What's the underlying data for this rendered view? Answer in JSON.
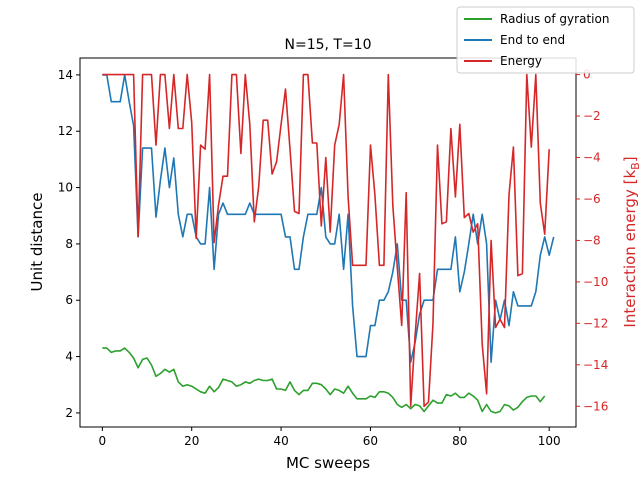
{
  "chart_data": {
    "type": "line",
    "title": "N=15, T=10",
    "xlabel": "MC sweeps",
    "ylabel_left": "Unit distance",
    "ylabel_right": "Interaction energy [$k_B$]",
    "xlim": [
      -5,
      106
    ],
    "ylim_left": [
      1.5,
      14.6
    ],
    "ylim_right": [
      -17.0,
      0.8
    ],
    "xticks": [
      0,
      20,
      40,
      60,
      80,
      100
    ],
    "yticks_left": [
      2,
      4,
      6,
      8,
      10,
      12,
      14
    ],
    "yticks_right": [
      0,
      -2,
      -4,
      -6,
      -8,
      -10,
      -12,
      -14,
      -16
    ],
    "grid": false,
    "legend_position": "top-right",
    "colors": {
      "radius": "#2ca02c",
      "end_to_end": "#1f77b4",
      "energy": "#d62728",
      "right_axis": "#d62728",
      "axes": "#000000"
    },
    "series": [
      {
        "name": "Radius of gyration",
        "axis": "left",
        "color": "#2ca02c",
        "values": [
          4.3,
          4.3,
          4.15,
          4.2,
          4.2,
          4.3,
          4.15,
          3.95,
          3.6,
          3.9,
          3.95,
          3.7,
          3.3,
          3.4,
          3.55,
          3.45,
          3.55,
          3.1,
          2.95,
          3.0,
          2.95,
          2.85,
          2.75,
          2.7,
          2.95,
          2.75,
          2.9,
          3.2,
          3.15,
          3.1,
          2.95,
          3.0,
          3.1,
          3.05,
          3.15,
          3.2,
          3.15,
          3.15,
          3.2,
          2.85,
          2.85,
          2.8,
          3.1,
          2.8,
          2.65,
          2.8,
          2.8,
          3.05,
          3.05,
          3.0,
          2.85,
          2.65,
          2.85,
          2.8,
          2.7,
          2.95,
          2.7,
          2.5,
          2.5,
          2.5,
          2.6,
          2.55,
          2.75,
          2.75,
          2.7,
          2.55,
          2.3,
          2.2,
          2.3,
          2.15,
          2.3,
          2.25,
          2.05,
          2.25,
          2.45,
          2.35,
          2.35,
          2.65,
          2.6,
          2.7,
          2.55,
          2.55,
          2.7,
          2.6,
          2.45,
          2.05,
          2.3,
          2.05,
          2.0,
          2.05,
          2.3,
          2.25,
          2.1,
          2.2,
          2.4,
          2.55,
          2.6,
          2.6,
          2.4,
          2.6
        ]
      },
      {
        "name": "End to end",
        "axis": "left",
        "color": "#1f77b4",
        "values": [
          14.0,
          14.0,
          13.05,
          13.05,
          13.05,
          14.0,
          13.05,
          12.2,
          8.25,
          11.4,
          11.4,
          11.4,
          8.95,
          10.25,
          11.4,
          10.0,
          11.05,
          9.05,
          8.25,
          9.05,
          9.05,
          8.25,
          8.0,
          8.0,
          10.0,
          7.1,
          9.05,
          9.45,
          9.05,
          9.05,
          9.05,
          9.05,
          9.05,
          9.45,
          9.05,
          9.05,
          9.05,
          9.05,
          9.05,
          9.05,
          9.05,
          8.25,
          8.25,
          7.1,
          7.1,
          8.25,
          9.05,
          9.05,
          9.05,
          10.0,
          8.25,
          8.0,
          8.0,
          9.05,
          7.1,
          9.05,
          5.8,
          4.0,
          4.0,
          4.0,
          5.1,
          5.1,
          6.0,
          6.0,
          6.3,
          7.0,
          8.0,
          6.0,
          6.0,
          3.8,
          4.5,
          5.5,
          6.0,
          6.0,
          6.0,
          7.1,
          7.1,
          7.1,
          7.1,
          8.25,
          6.3,
          7.0,
          8.0,
          9.05,
          8.0,
          9.05,
          8.0,
          3.8,
          6.0,
          5.3,
          6.0,
          5.1,
          6.3,
          5.8,
          5.8,
          5.8,
          5.8,
          6.3,
          7.6,
          8.25,
          7.6,
          8.25
        ]
      },
      {
        "name": "Energy",
        "axis": "right",
        "color": "#d62728",
        "values": [
          0.0,
          0.0,
          0.0,
          0.0,
          0.0,
          0.0,
          0.0,
          0.0,
          -7.8,
          0.0,
          0.0,
          0.0,
          -3.4,
          0.0,
          0.0,
          -2.6,
          0.0,
          -2.6,
          -2.6,
          0.0,
          -2.3,
          -7.9,
          -3.4,
          -3.6,
          0.0,
          -8.1,
          -6.3,
          -4.9,
          -4.9,
          0.0,
          0.0,
          -3.8,
          0.0,
          -2.4,
          -7.1,
          -5.4,
          -2.2,
          -2.2,
          -4.8,
          -4.2,
          -2.4,
          -0.7,
          -3.6,
          -6.6,
          -6.7,
          0.0,
          0.0,
          -3.3,
          -3.3,
          -7.3,
          -4.0,
          -7.6,
          -3.4,
          -2.4,
          0.0,
          -5.9,
          -9.2,
          -9.2,
          -9.2,
          -9.2,
          -3.4,
          -5.8,
          -9.2,
          -9.2,
          0.0,
          -6.3,
          -9.3,
          -12.1,
          -5.7,
          -16.0,
          -12.6,
          -9.6,
          -16.0,
          -15.8,
          -12.0,
          -3.4,
          -7.2,
          -7.1,
          -2.6,
          -5.9,
          -2.4,
          -6.9,
          -6.7,
          -7.6,
          -7.2,
          -13.0,
          -15.4,
          -8.0,
          -12.2,
          -11.8,
          -12.2,
          -5.8,
          -3.5,
          -9.7,
          -9.6,
          0.0,
          -3.5,
          0.0,
          -6.2,
          -7.7,
          -3.6
        ]
      }
    ]
  }
}
